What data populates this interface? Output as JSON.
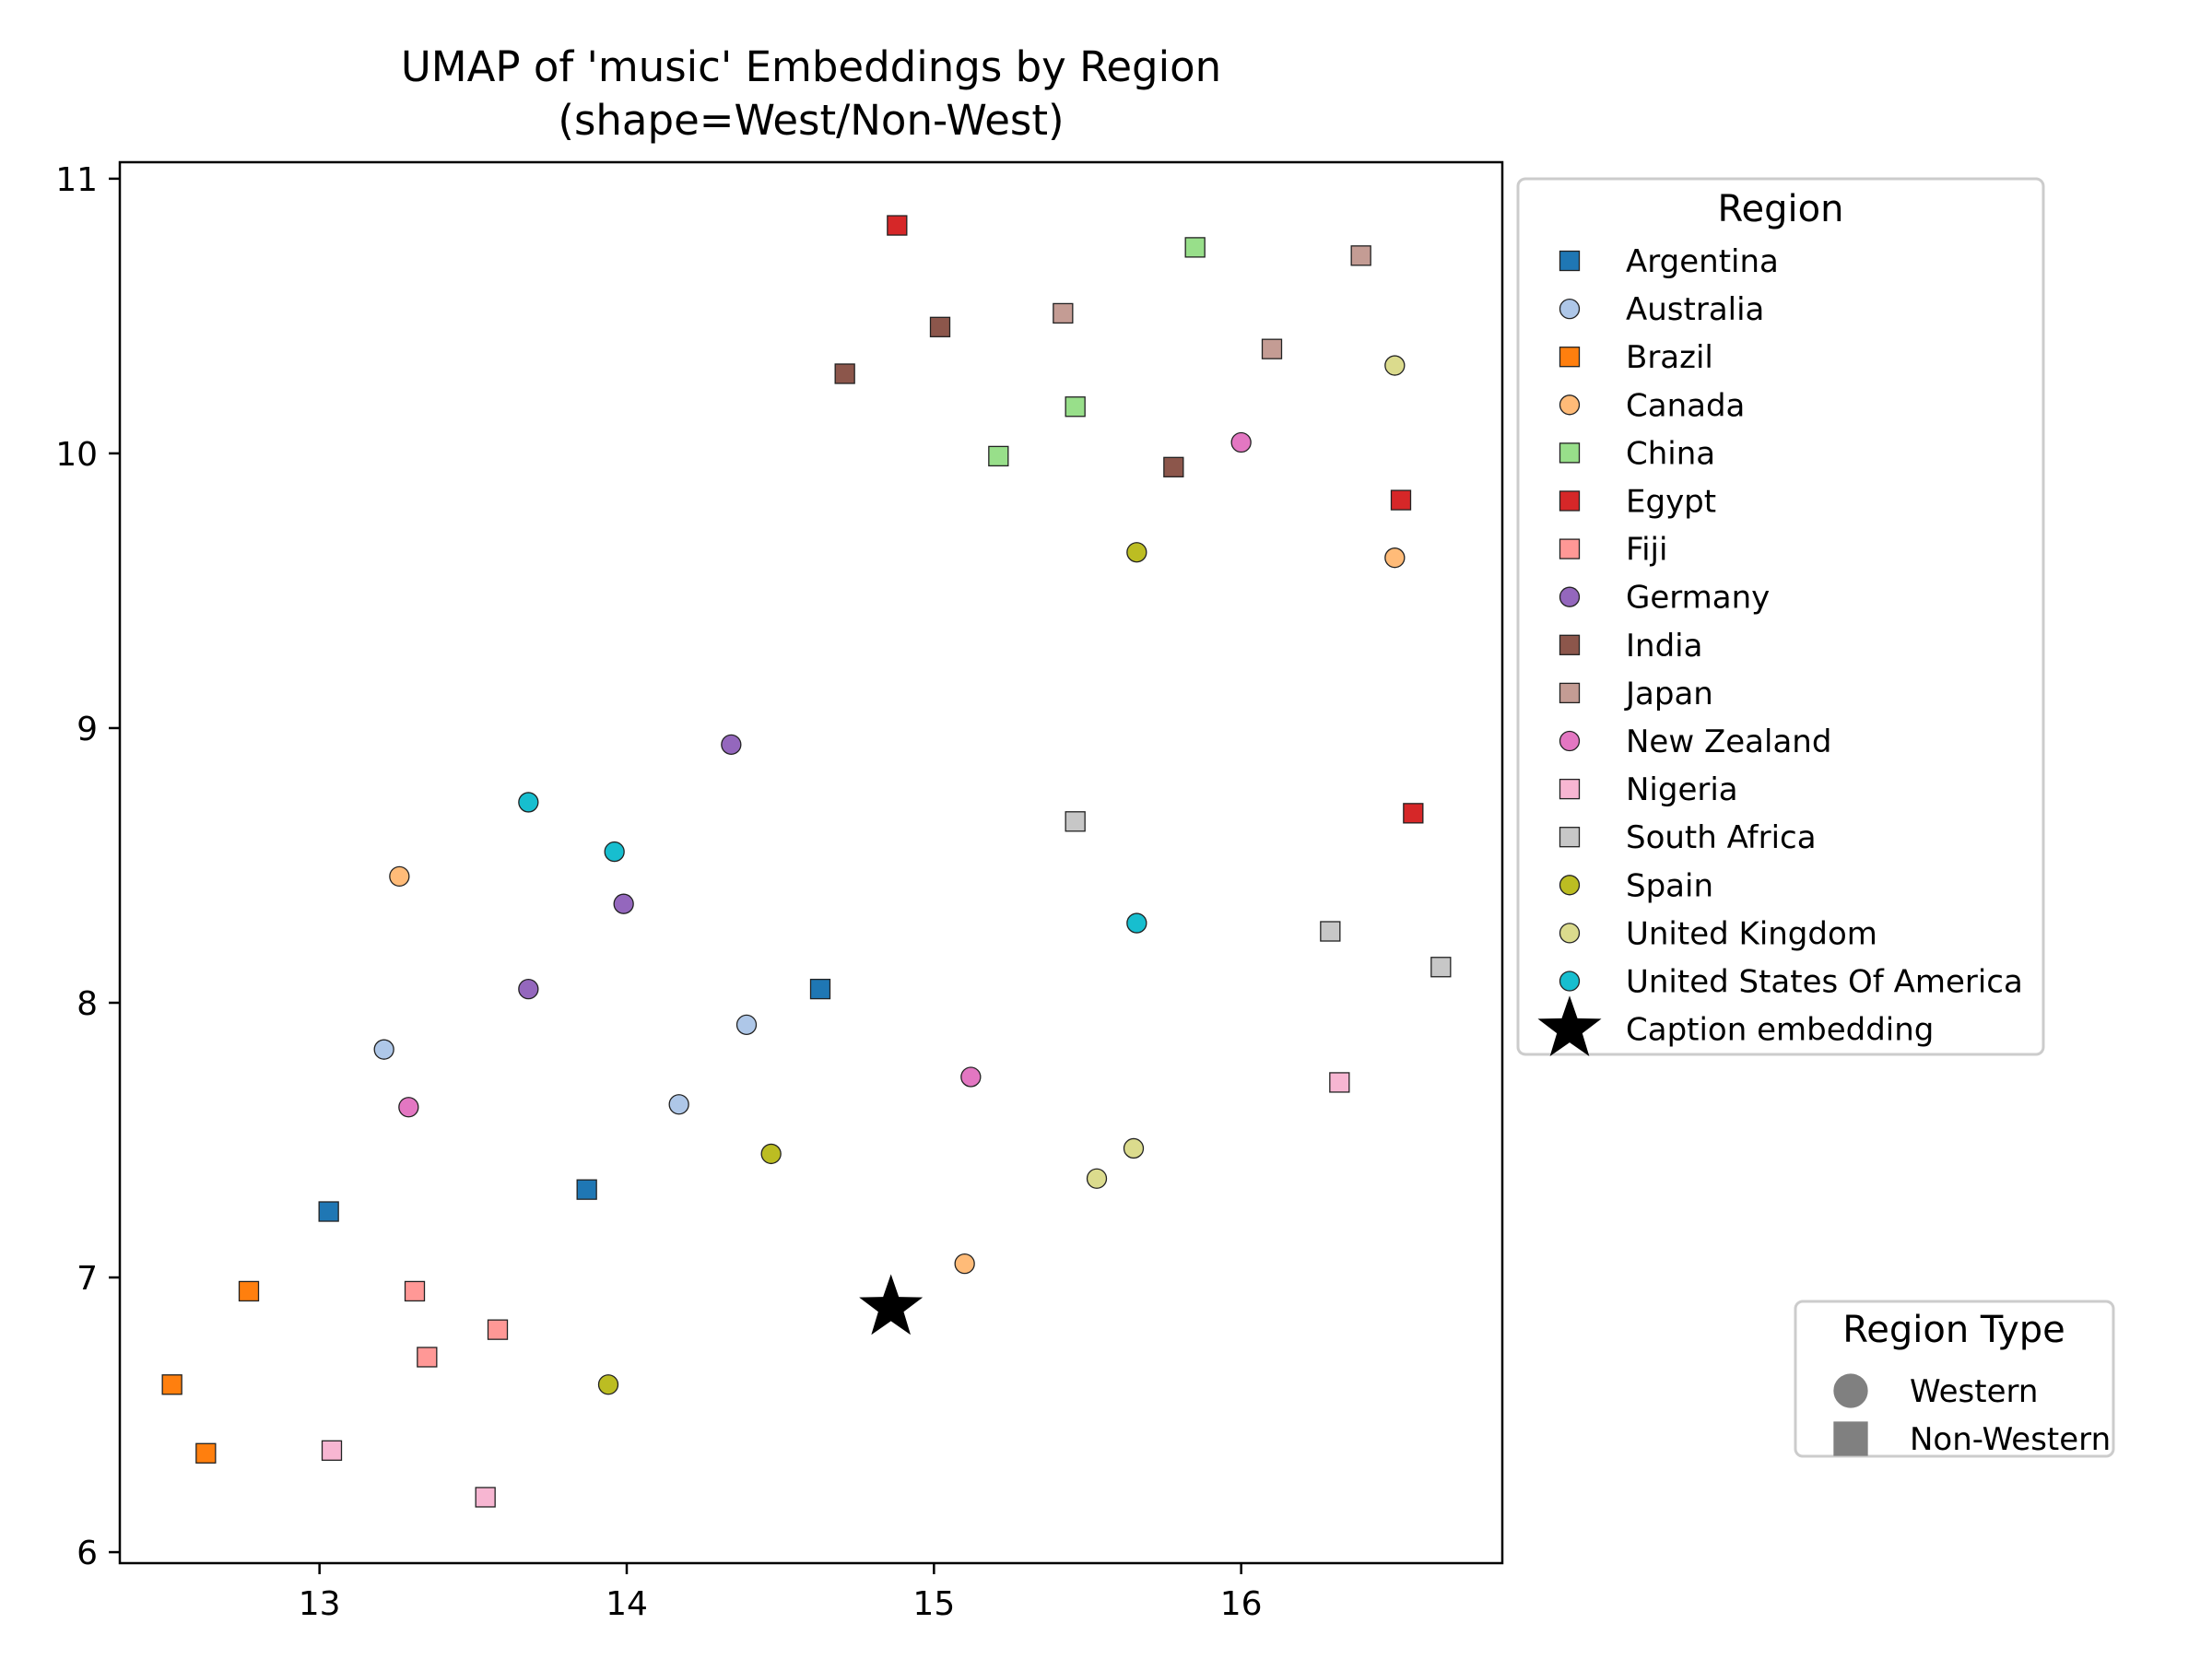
{
  "chart_data": {
    "type": "scatter",
    "title": "UMAP of 'music' Embeddings by Region\n(shape=West/Non-West)",
    "title_lines": [
      "UMAP of 'music' Embeddings by Region",
      "(shape=West/Non-West)"
    ],
    "xlim": [
      12.35,
      16.85
    ],
    "ylim": [
      5.96,
      11.06
    ],
    "xticks": [
      13,
      14,
      15,
      16
    ],
    "yticks": [
      6,
      7,
      8,
      9,
      10,
      11
    ],
    "grid": false,
    "legend_title": "Region",
    "legend_placement": "outside-right-top",
    "shape_legend": {
      "title": "Region Type",
      "placement": "outside-right-bottom",
      "items": [
        {
          "label": "Western",
          "shape": "circle"
        },
        {
          "label": "Non-Western",
          "shape": "square"
        }
      ]
    },
    "series": [
      {
        "name": "Argentina",
        "color": "#1f77b4",
        "shape": "square",
        "points": [
          [
            14.63,
            8.05
          ],
          [
            13.87,
            7.32
          ],
          [
            13.03,
            7.24
          ]
        ]
      },
      {
        "name": "Australia",
        "color": "#aec7e8",
        "shape": "circle",
        "points": [
          [
            14.39,
            7.92
          ],
          [
            13.21,
            7.83
          ],
          [
            14.17,
            7.63
          ]
        ]
      },
      {
        "name": "Brazil",
        "color": "#ff7f0e",
        "shape": "square",
        "points": [
          [
            12.77,
            6.95
          ],
          [
            12.52,
            6.61
          ],
          [
            12.63,
            6.36
          ]
        ]
      },
      {
        "name": "Canada",
        "color": "#ffbb78",
        "shape": "circle",
        "points": [
          [
            16.5,
            9.62
          ],
          [
            13.26,
            8.46
          ],
          [
            15.1,
            7.05
          ]
        ]
      },
      {
        "name": "China",
        "color": "#98df8a",
        "shape": "square",
        "points": [
          [
            15.85,
            10.75
          ],
          [
            15.46,
            10.17
          ],
          [
            15.21,
            9.99
          ]
        ]
      },
      {
        "name": "Egypt",
        "color": "#d62728",
        "shape": "square",
        "points": [
          [
            14.88,
            10.83
          ],
          [
            16.52,
            9.83
          ],
          [
            16.56,
            8.69
          ]
        ]
      },
      {
        "name": "Fiji",
        "color": "#ff9896",
        "shape": "square",
        "points": [
          [
            13.31,
            6.95
          ],
          [
            13.58,
            6.81
          ],
          [
            13.35,
            6.71
          ]
        ]
      },
      {
        "name": "Germany",
        "color": "#9467bd",
        "shape": "circle",
        "points": [
          [
            14.34,
            8.94
          ],
          [
            13.99,
            8.36
          ],
          [
            13.68,
            8.05
          ]
        ]
      },
      {
        "name": "India",
        "color": "#8c564b",
        "shape": "square",
        "points": [
          [
            15.02,
            10.46
          ],
          [
            14.71,
            10.29
          ],
          [
            15.78,
            9.95
          ]
        ]
      },
      {
        "name": "Japan",
        "color": "#c49c94",
        "shape": "square",
        "points": [
          [
            16.39,
            10.72
          ],
          [
            15.42,
            10.51
          ],
          [
            16.1,
            10.38
          ]
        ]
      },
      {
        "name": "New Zealand",
        "color": "#e377c2",
        "shape": "circle",
        "points": [
          [
            16.0,
            10.04
          ],
          [
            15.12,
            7.73
          ],
          [
            13.29,
            7.62
          ]
        ]
      },
      {
        "name": "Nigeria",
        "color": "#f7b6d2",
        "shape": "square",
        "points": [
          [
            16.32,
            7.71
          ],
          [
            13.04,
            6.37
          ],
          [
            13.54,
            6.2
          ]
        ]
      },
      {
        "name": "South Africa",
        "color": "#c7c7c7",
        "shape": "square",
        "points": [
          [
            15.46,
            8.66
          ],
          [
            16.29,
            8.26
          ],
          [
            16.65,
            8.13
          ]
        ]
      },
      {
        "name": "Spain",
        "color": "#bcbd22",
        "shape": "circle",
        "points": [
          [
            15.66,
            9.64
          ],
          [
            14.47,
            7.45
          ],
          [
            13.94,
            6.61
          ]
        ]
      },
      {
        "name": "United Kingdom",
        "color": "#dbdb8d",
        "shape": "circle",
        "points": [
          [
            16.5,
            10.32
          ],
          [
            15.65,
            7.47
          ],
          [
            15.53,
            7.36
          ]
        ]
      },
      {
        "name": "United States Of America",
        "color": "#17becf",
        "shape": "circle",
        "points": [
          [
            13.68,
            8.73
          ],
          [
            13.96,
            8.55
          ],
          [
            15.66,
            8.29
          ]
        ]
      }
    ],
    "caption_embedding": {
      "name": "Caption embedding",
      "color": "#000000",
      "shape": "star",
      "point": [
        14.86,
        6.89
      ]
    }
  }
}
